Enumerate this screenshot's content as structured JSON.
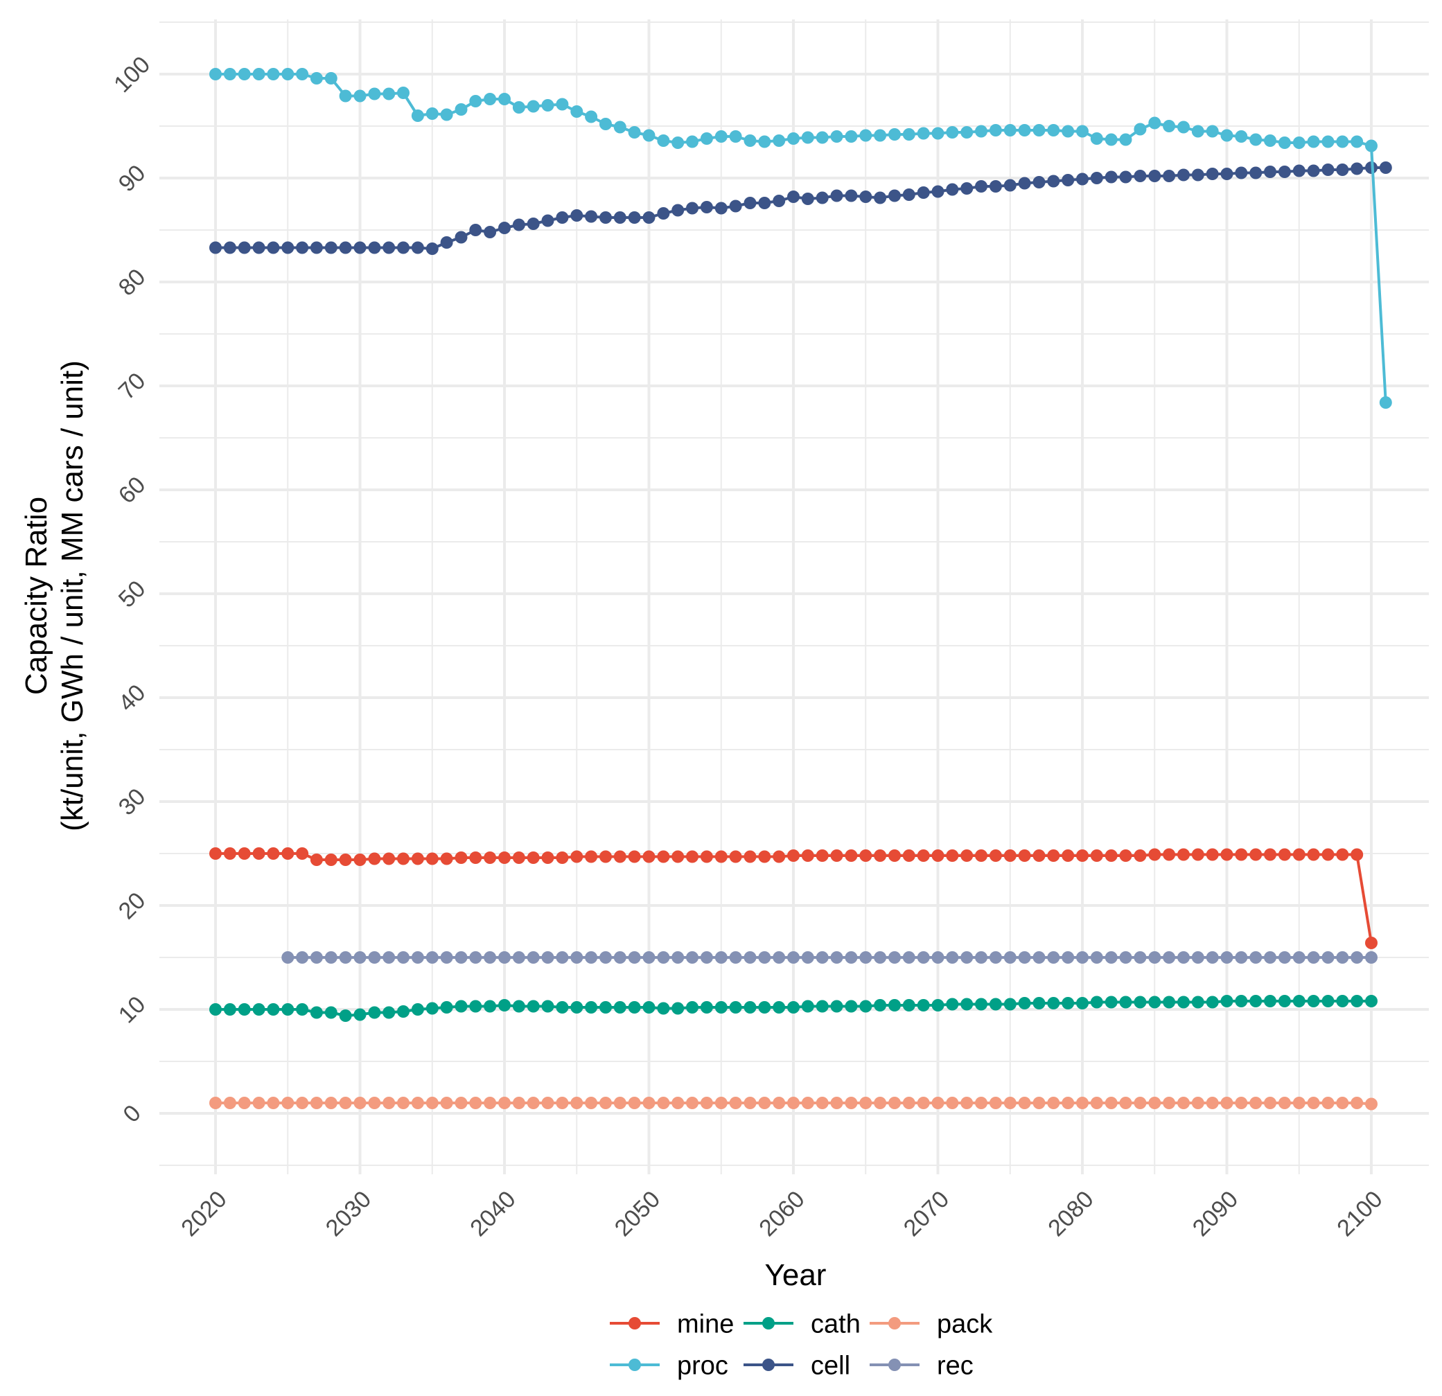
{
  "chart_data": {
    "type": "line",
    "title": "",
    "xlabel": "Year",
    "ylabel": [
      "Capacity Ratio",
      "(kt/unit, GWh / unit, MM cars / unit)"
    ],
    "xlim": [
      2016,
      2102
    ],
    "ylim": [
      -5,
      105
    ],
    "x_ticks": [
      2020,
      2030,
      2040,
      2050,
      2060,
      2070,
      2080,
      2090,
      2100
    ],
    "y_ticks": [
      0,
      10,
      20,
      30,
      40,
      50,
      60,
      70,
      80,
      90,
      100
    ],
    "grid": true,
    "legend_position": "bottom",
    "legend_order": [
      "mine",
      "cath",
      "pack",
      "proc",
      "cell",
      "rec"
    ],
    "series": [
      {
        "name": "mine",
        "color": "#E64B35",
        "x_start": 2020,
        "values": [
          25.0,
          25.0,
          25.0,
          25.0,
          25.0,
          25.0,
          25.0,
          24.4,
          24.4,
          24.4,
          24.4,
          24.5,
          24.5,
          24.5,
          24.5,
          24.5,
          24.5,
          24.6,
          24.6,
          24.6,
          24.6,
          24.6,
          24.6,
          24.6,
          24.6,
          24.7,
          24.7,
          24.7,
          24.7,
          24.7,
          24.7,
          24.7,
          24.7,
          24.7,
          24.7,
          24.7,
          24.7,
          24.7,
          24.7,
          24.7,
          24.8,
          24.8,
          24.8,
          24.8,
          24.8,
          24.8,
          24.8,
          24.8,
          24.8,
          24.8,
          24.8,
          24.8,
          24.8,
          24.8,
          24.8,
          24.8,
          24.8,
          24.8,
          24.8,
          24.8,
          24.8,
          24.8,
          24.8,
          24.8,
          24.8,
          24.9,
          24.9,
          24.9,
          24.9,
          24.9,
          24.9,
          24.9,
          24.9,
          24.9,
          24.9,
          24.9,
          24.9,
          24.9,
          24.9,
          24.9,
          16.4
        ]
      },
      {
        "name": "proc",
        "color": "#4DBBD5",
        "x_start": 2020,
        "values": [
          100.0,
          100.0,
          100.0,
          100.0,
          100.0,
          100.0,
          100.0,
          99.6,
          99.6,
          97.9,
          97.9,
          98.1,
          98.1,
          98.2,
          96.0,
          96.2,
          96.1,
          96.6,
          97.4,
          97.6,
          97.6,
          96.8,
          96.9,
          97.0,
          97.1,
          96.4,
          95.9,
          95.2,
          94.9,
          94.4,
          94.1,
          93.6,
          93.4,
          93.5,
          93.8,
          94.0,
          94.0,
          93.6,
          93.5,
          93.6,
          93.8,
          93.9,
          93.9,
          94.0,
          94.0,
          94.1,
          94.1,
          94.2,
          94.2,
          94.3,
          94.3,
          94.4,
          94.4,
          94.5,
          94.6,
          94.6,
          94.6,
          94.6,
          94.6,
          94.5,
          94.5,
          93.8,
          93.7,
          93.7,
          94.7,
          95.3,
          95.0,
          94.9,
          94.5,
          94.5,
          94.1,
          94.0,
          93.7,
          93.6,
          93.4,
          93.4,
          93.5,
          93.5,
          93.5,
          93.5,
          93.1,
          68.4
        ]
      },
      {
        "name": "cath",
        "color": "#00A087",
        "x_start": 2020,
        "values": [
          10.0,
          10.0,
          10.0,
          10.0,
          10.0,
          10.0,
          10.0,
          9.7,
          9.7,
          9.4,
          9.5,
          9.7,
          9.7,
          9.8,
          10.0,
          10.1,
          10.2,
          10.3,
          10.3,
          10.3,
          10.4,
          10.3,
          10.3,
          10.3,
          10.2,
          10.2,
          10.2,
          10.2,
          10.2,
          10.2,
          10.2,
          10.1,
          10.1,
          10.2,
          10.2,
          10.2,
          10.2,
          10.2,
          10.2,
          10.2,
          10.2,
          10.3,
          10.3,
          10.3,
          10.3,
          10.3,
          10.4,
          10.4,
          10.4,
          10.4,
          10.4,
          10.5,
          10.5,
          10.5,
          10.5,
          10.5,
          10.6,
          10.6,
          10.6,
          10.6,
          10.6,
          10.7,
          10.7,
          10.7,
          10.7,
          10.7,
          10.7,
          10.7,
          10.7,
          10.7,
          10.8,
          10.8,
          10.8,
          10.8,
          10.8,
          10.8,
          10.8,
          10.8,
          10.8,
          10.8,
          10.8
        ]
      },
      {
        "name": "cell",
        "color": "#3C5488",
        "x_start": 2020,
        "values": [
          83.3,
          83.3,
          83.3,
          83.3,
          83.3,
          83.3,
          83.3,
          83.3,
          83.3,
          83.3,
          83.3,
          83.3,
          83.3,
          83.3,
          83.3,
          83.2,
          83.8,
          84.3,
          85.0,
          84.8,
          85.2,
          85.5,
          85.6,
          85.9,
          86.2,
          86.4,
          86.3,
          86.2,
          86.2,
          86.2,
          86.2,
          86.6,
          86.9,
          87.1,
          87.2,
          87.1,
          87.3,
          87.6,
          87.6,
          87.8,
          88.2,
          88.0,
          88.1,
          88.3,
          88.3,
          88.2,
          88.1,
          88.3,
          88.4,
          88.6,
          88.7,
          88.9,
          89.0,
          89.2,
          89.2,
          89.3,
          89.5,
          89.6,
          89.7,
          89.8,
          89.9,
          90.0,
          90.1,
          90.1,
          90.2,
          90.2,
          90.2,
          90.3,
          90.3,
          90.4,
          90.4,
          90.5,
          90.5,
          90.6,
          90.6,
          90.7,
          90.7,
          90.8,
          90.8,
          90.9,
          91.0,
          91.0
        ]
      },
      {
        "name": "pack",
        "color": "#F39B7F",
        "x_start": 2020,
        "values": [
          1.0,
          1.0,
          1.0,
          1.0,
          1.0,
          1.0,
          1.0,
          1.0,
          1.0,
          1.0,
          1.0,
          1.0,
          1.0,
          1.0,
          1.0,
          1.0,
          1.0,
          1.0,
          1.0,
          1.0,
          1.0,
          1.0,
          1.0,
          1.0,
          1.0,
          1.0,
          1.0,
          1.0,
          1.0,
          1.0,
          1.0,
          1.0,
          1.0,
          1.0,
          1.0,
          1.0,
          1.0,
          1.0,
          1.0,
          1.0,
          1.0,
          1.0,
          1.0,
          1.0,
          1.0,
          1.0,
          1.0,
          1.0,
          1.0,
          1.0,
          1.0,
          1.0,
          1.0,
          1.0,
          1.0,
          1.0,
          1.0,
          1.0,
          1.0,
          1.0,
          1.0,
          1.0,
          1.0,
          1.0,
          1.0,
          1.0,
          1.0,
          1.0,
          1.0,
          1.0,
          1.0,
          1.0,
          1.0,
          1.0,
          1.0,
          1.0,
          1.0,
          1.0,
          1.0,
          1.0,
          0.9
        ]
      },
      {
        "name": "rec",
        "color": "#8491B4",
        "x_start": 2025,
        "values": [
          15.0,
          15.0,
          15.0,
          15.0,
          15.0,
          15.0,
          15.0,
          15.0,
          15.0,
          15.0,
          15.0,
          15.0,
          15.0,
          15.0,
          15.0,
          15.0,
          15.0,
          15.0,
          15.0,
          15.0,
          15.0,
          15.0,
          15.0,
          15.0,
          15.0,
          15.0,
          15.0,
          15.0,
          15.0,
          15.0,
          15.0,
          15.0,
          15.0,
          15.0,
          15.0,
          15.0,
          15.0,
          15.0,
          15.0,
          15.0,
          15.0,
          15.0,
          15.0,
          15.0,
          15.0,
          15.0,
          15.0,
          15.0,
          15.0,
          15.0,
          15.0,
          15.0,
          15.0,
          15.0,
          15.0,
          15.0,
          15.0,
          15.0,
          15.0,
          15.0,
          15.0,
          15.0,
          15.0,
          15.0,
          15.0,
          15.0,
          15.0,
          15.0,
          15.0,
          15.0,
          15.0,
          15.0,
          15.0,
          15.0,
          15.0,
          15.0
        ]
      }
    ]
  }
}
